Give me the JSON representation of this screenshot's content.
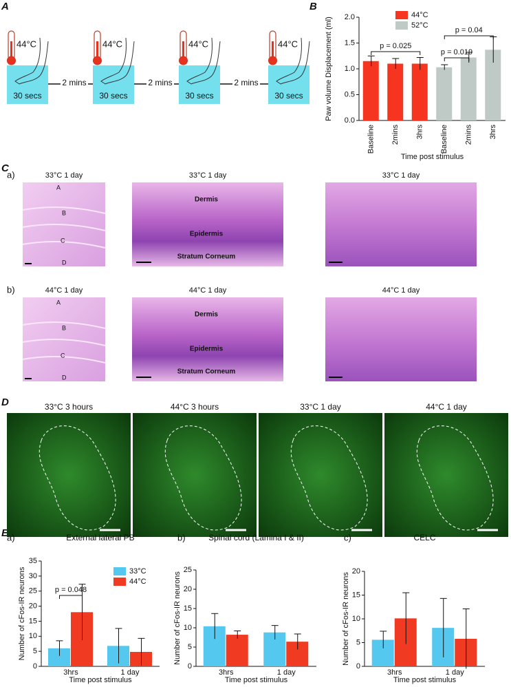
{
  "panel_labels": [
    "A",
    "B",
    "C",
    "D",
    "E"
  ],
  "protocol": {
    "temperature": "44°C",
    "duration": "30 secs",
    "interval": "2 mins"
  },
  "histology": {
    "rows": [
      {
        "label": "a)",
        "condition": "33°C 1 day",
        "color": "#3cb4e6"
      },
      {
        "label": "b)",
        "condition": "44°C 1 day",
        "color": "#e8321e"
      }
    ],
    "layers": [
      "Dermis",
      "Epidermis",
      "Stratum Corneum"
    ],
    "regions": [
      "A",
      "B",
      "C",
      "D"
    ]
  },
  "cfos_images": [
    {
      "label": "33°C 3 hours",
      "color": "#3cb4e6"
    },
    {
      "label": "44°C 3 hours",
      "color": "#e8321e"
    },
    {
      "label": "33°C 1 day",
      "color": "#3cb4e6"
    },
    {
      "label": "44°C 1 day",
      "color": "#e8321e"
    }
  ],
  "chart_data": [
    {
      "type": "bar",
      "ylabel": "Paw volume Displacement (ml)",
      "xlabel": "Time post stimulus",
      "categories": [
        "Baseline",
        "2mins",
        "3hrs",
        "Baseline",
        "2mins",
        "3hrs"
      ],
      "series": [
        {
          "name": "44°C",
          "color": "#f5351f",
          "values": [
            1.15,
            1.1,
            1.1,
            null,
            null,
            null
          ],
          "errors": [
            0.1,
            0.1,
            0.12,
            null,
            null,
            null
          ]
        },
        {
          "name": "52°C",
          "color": "#bfc9c6",
          "values": [
            null,
            null,
            null,
            1.03,
            1.22,
            1.37
          ],
          "errors": [
            null,
            null,
            null,
            0.05,
            0.1,
            0.25
          ]
        }
      ],
      "annotations": [
        "p = 0.025",
        "p = 0.019",
        "p = 0.04"
      ],
      "ylim": [
        0,
        2
      ],
      "yticks": [
        {
          "value": 0,
          "label": "0.0"
        },
        0.5,
        {
          "value": 1,
          "label": "1.0"
        },
        1.5,
        {
          "value": 2,
          "label": "2.0"
        }
      ]
    },
    {
      "type": "bar",
      "panel": "a)",
      "title": "External lateral PB",
      "ylabel": "Number of cFos-IR neurons",
      "xlabel": "Time post stimulus",
      "categories": [
        "3hrs",
        "1 day"
      ],
      "series": [
        {
          "name": "33°C",
          "color": "#55c8f0",
          "values": [
            6,
            6.8
          ],
          "errors": [
            2.5,
            5.8
          ]
        },
        {
          "name": "44°C",
          "color": "#f03a22",
          "values": [
            18,
            4.8
          ],
          "errors": [
            9.3,
            4.5
          ]
        }
      ],
      "annotations": [
        "p = 0.048"
      ],
      "ylim": [
        0,
        35
      ],
      "yticks": [
        0,
        5,
        10,
        15,
        20,
        25,
        30,
        35
      ]
    },
    {
      "type": "bar",
      "panel": "b)",
      "title": "Spinal cord (Lamina I & II)",
      "ylabel": "Number of cFos-IR neurons",
      "xlabel": "Time post stimulus",
      "categories": [
        "3hrs",
        "1 day"
      ],
      "series": [
        {
          "name": "33°C",
          "color": "#55c8f0",
          "values": [
            10.4,
            8.8
          ],
          "errors": [
            3.3,
            1.8
          ]
        },
        {
          "name": "44°C",
          "color": "#f03a22",
          "values": [
            8.2,
            6.4
          ],
          "errors": [
            1,
            2
          ]
        }
      ],
      "ylim": [
        0,
        25
      ],
      "yticks": [
        0,
        5,
        10,
        15,
        20,
        25
      ]
    },
    {
      "type": "bar",
      "panel": "c)",
      "title": "CELC",
      "ylabel": "Number of cFos-IR neurons",
      "xlabel": "Time post stimulus",
      "categories": [
        "3hrs",
        "1 day"
      ],
      "series": [
        {
          "name": "33°C",
          "color": "#55c8f0",
          "values": [
            5.6,
            8.1
          ],
          "errors": [
            1.8,
            6.2
          ]
        },
        {
          "name": "44°C",
          "color": "#f03a22",
          "values": [
            10.1,
            5.8
          ],
          "errors": [
            5.4,
            6.3
          ]
        }
      ],
      "ylim": [
        0,
        20
      ],
      "yticks": [
        0,
        5,
        10,
        15,
        20
      ]
    }
  ]
}
